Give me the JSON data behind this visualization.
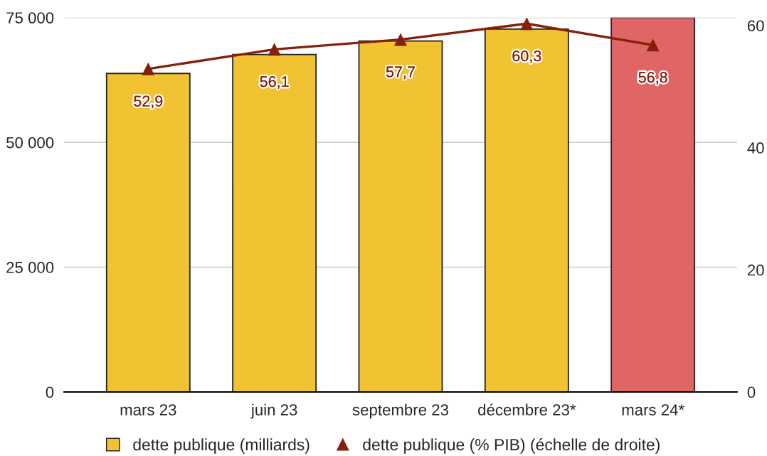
{
  "chart_data": {
    "type": "bar",
    "categories": [
      "mars 23",
      "juin 23",
      "septembre 23",
      "décembre 23*",
      "mars 24*"
    ],
    "series": [
      {
        "name": "dette publique (milliards)",
        "colors": [
          "#f1c232",
          "#f1c232",
          "#f1c232",
          "#f1c232",
          "#e06666"
        ],
        "values": [
          63800,
          67600,
          70300,
          72700,
          75000
        ]
      },
      {
        "name": "dette publique (% PIB) (échelle de droite)",
        "type": "line",
        "axis": "y2",
        "color": "#85200c",
        "values": [
          52.9,
          56.1,
          57.7,
          60.3,
          56.8
        ],
        "value_labels": [
          "52,9",
          "56,1",
          "57,7",
          "60,3",
          "56,8"
        ]
      }
    ],
    "ylim": [
      0,
      75000
    ],
    "yticks": [
      0,
      {
        "value": 25000,
        "label": "25 000"
      },
      {
        "value": 50000,
        "label": "50 000"
      },
      {
        "value": 75000,
        "label": "75 000"
      }
    ],
    "y2lim": [
      0,
      61.3
    ],
    "y2ticks": [
      0,
      20,
      40,
      60
    ],
    "grid": "y",
    "legend": "bottom",
    "marker": "triangle",
    "line_style": "solid"
  }
}
